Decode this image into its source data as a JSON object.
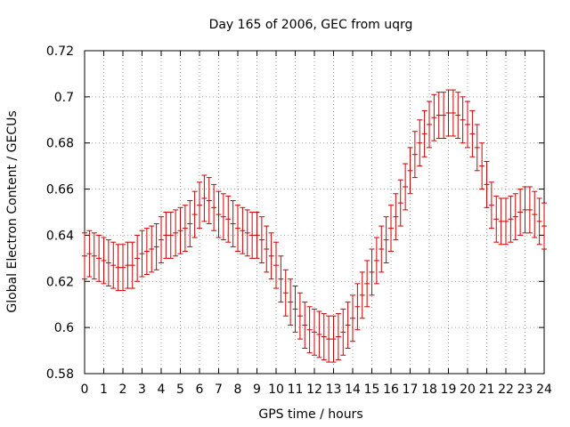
{
  "chart_data": {
    "type": "scatter",
    "title": "Day 165 of 2006, GEC from uqrg",
    "xlabel": "GPS time / hours",
    "ylabel": "Global Electron Content / GECUs",
    "xlim": [
      0,
      24
    ],
    "ylim": [
      0.58,
      0.72
    ],
    "x_ticks": [
      "0",
      "1",
      "2",
      "3",
      "4",
      "5",
      "6",
      "7",
      "8",
      "9",
      "10",
      "11",
      "12",
      "13",
      "14",
      "15",
      "16",
      "17",
      "18",
      "19",
      "20",
      "21",
      "22",
      "23",
      "24"
    ],
    "y_ticks": [
      "0.58",
      "0.6",
      "0.62",
      "0.64",
      "0.66",
      "0.68",
      "0.7",
      "0.72"
    ],
    "grid": true,
    "errorbar_halfwidth": 0.01,
    "series": [
      {
        "color": "#cc0000",
        "x": [
          0,
          0.25,
          0.5,
          0.75,
          1,
          1.25,
          1.5,
          1.75,
          2,
          2.25,
          2.5,
          2.75,
          3,
          3.25,
          3.5,
          3.75,
          4,
          4.25,
          4.5,
          4.75,
          5,
          5.25,
          5.5,
          5.75,
          6,
          6.25,
          6.5,
          6.75,
          7,
          7.25,
          7.5,
          7.75,
          8,
          8.25,
          8.5,
          8.75,
          9,
          9.25,
          9.5,
          9.75,
          10,
          10.25,
          10.5,
          10.75,
          11,
          11.25,
          11.5,
          11.75,
          12,
          12.25,
          12.5,
          12.75,
          13,
          13.25,
          13.5,
          13.75,
          14,
          14.25,
          14.5,
          14.75,
          15,
          15.25,
          15.5,
          15.75,
          16,
          16.25,
          16.5,
          16.75,
          17,
          17.25,
          17.5,
          17.75,
          18,
          18.25,
          18.5,
          18.75,
          19,
          19.25,
          19.5,
          19.75,
          20,
          20.25,
          20.5,
          20.75,
          21,
          21.25,
          21.5,
          21.75,
          22,
          22.25,
          22.5,
          22.75,
          23,
          23.25,
          23.5,
          23.75,
          24
        ],
        "y": [
          0.631,
          0.632,
          0.631,
          0.63,
          0.629,
          0.628,
          0.627,
          0.626,
          0.626,
          0.627,
          0.627,
          0.63,
          0.632,
          0.633,
          0.634,
          0.635,
          0.638,
          0.64,
          0.64,
          0.641,
          0.642,
          0.643,
          0.645,
          0.649,
          0.653,
          0.656,
          0.655,
          0.652,
          0.649,
          0.648,
          0.647,
          0.645,
          0.643,
          0.642,
          0.641,
          0.64,
          0.64,
          0.638,
          0.634,
          0.631,
          0.627,
          0.621,
          0.615,
          0.611,
          0.608,
          0.605,
          0.601,
          0.599,
          0.598,
          0.597,
          0.596,
          0.595,
          0.595,
          0.596,
          0.598,
          0.601,
          0.604,
          0.609,
          0.614,
          0.619,
          0.624,
          0.629,
          0.634,
          0.638,
          0.643,
          0.648,
          0.654,
          0.661,
          0.668,
          0.675,
          0.68,
          0.684,
          0.688,
          0.691,
          0.692,
          0.692,
          0.693,
          0.693,
          0.692,
          0.69,
          0.688,
          0.684,
          0.678,
          0.67,
          0.662,
          0.653,
          0.647,
          0.646,
          0.646,
          0.647,
          0.648,
          0.65,
          0.651,
          0.651,
          0.649,
          0.646,
          0.644
        ]
      }
    ]
  }
}
